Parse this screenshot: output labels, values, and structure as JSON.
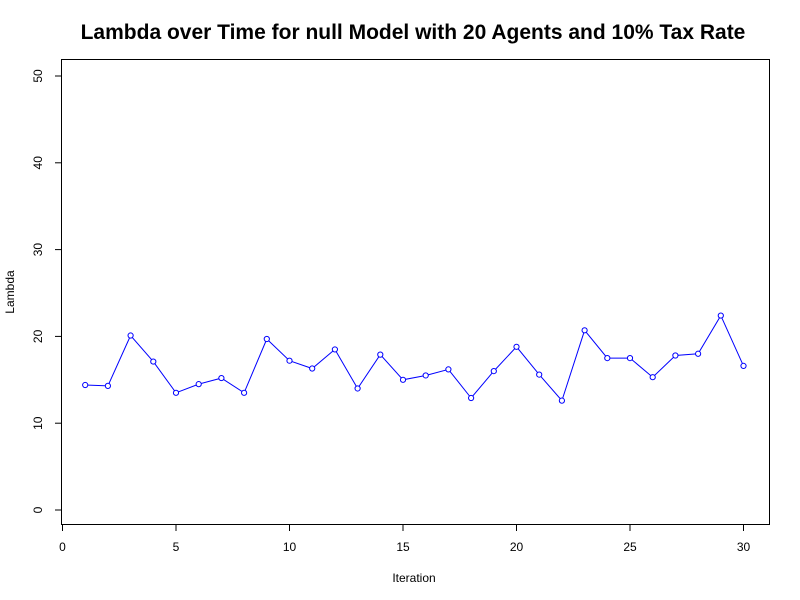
{
  "chart_data": {
    "type": "line",
    "title": "Lambda over Time for null Model with 20 Agents and 10% Tax Rate",
    "xlabel": "Iteration",
    "ylabel": "Lambda",
    "xlim": [
      0,
      31
    ],
    "ylim": [
      0,
      50
    ],
    "xticks": [
      0,
      5,
      10,
      15,
      20,
      25,
      30
    ],
    "yticks": [
      0,
      10,
      20,
      30,
      40,
      50
    ],
    "grid": false,
    "legend": "none",
    "line_color": "#0000ff",
    "marker": "open-circle",
    "series": [
      {
        "x": [
          1,
          2,
          3,
          4,
          5,
          6,
          7,
          8,
          9,
          10,
          11,
          12,
          13,
          14,
          15,
          16,
          17,
          18,
          19,
          20,
          21,
          22,
          23,
          24,
          25,
          26,
          27,
          28,
          29,
          30
        ],
        "values": [
          14.4,
          14.3,
          20.1,
          17.1,
          13.5,
          14.5,
          15.2,
          13.5,
          19.7,
          17.2,
          16.3,
          18.5,
          14.0,
          17.9,
          15.0,
          15.5,
          16.2,
          12.9,
          16.0,
          18.8,
          15.6,
          12.6,
          20.7,
          17.5,
          17.5,
          15.3,
          17.8,
          18.0,
          22.4,
          16.6
        ]
      }
    ]
  }
}
